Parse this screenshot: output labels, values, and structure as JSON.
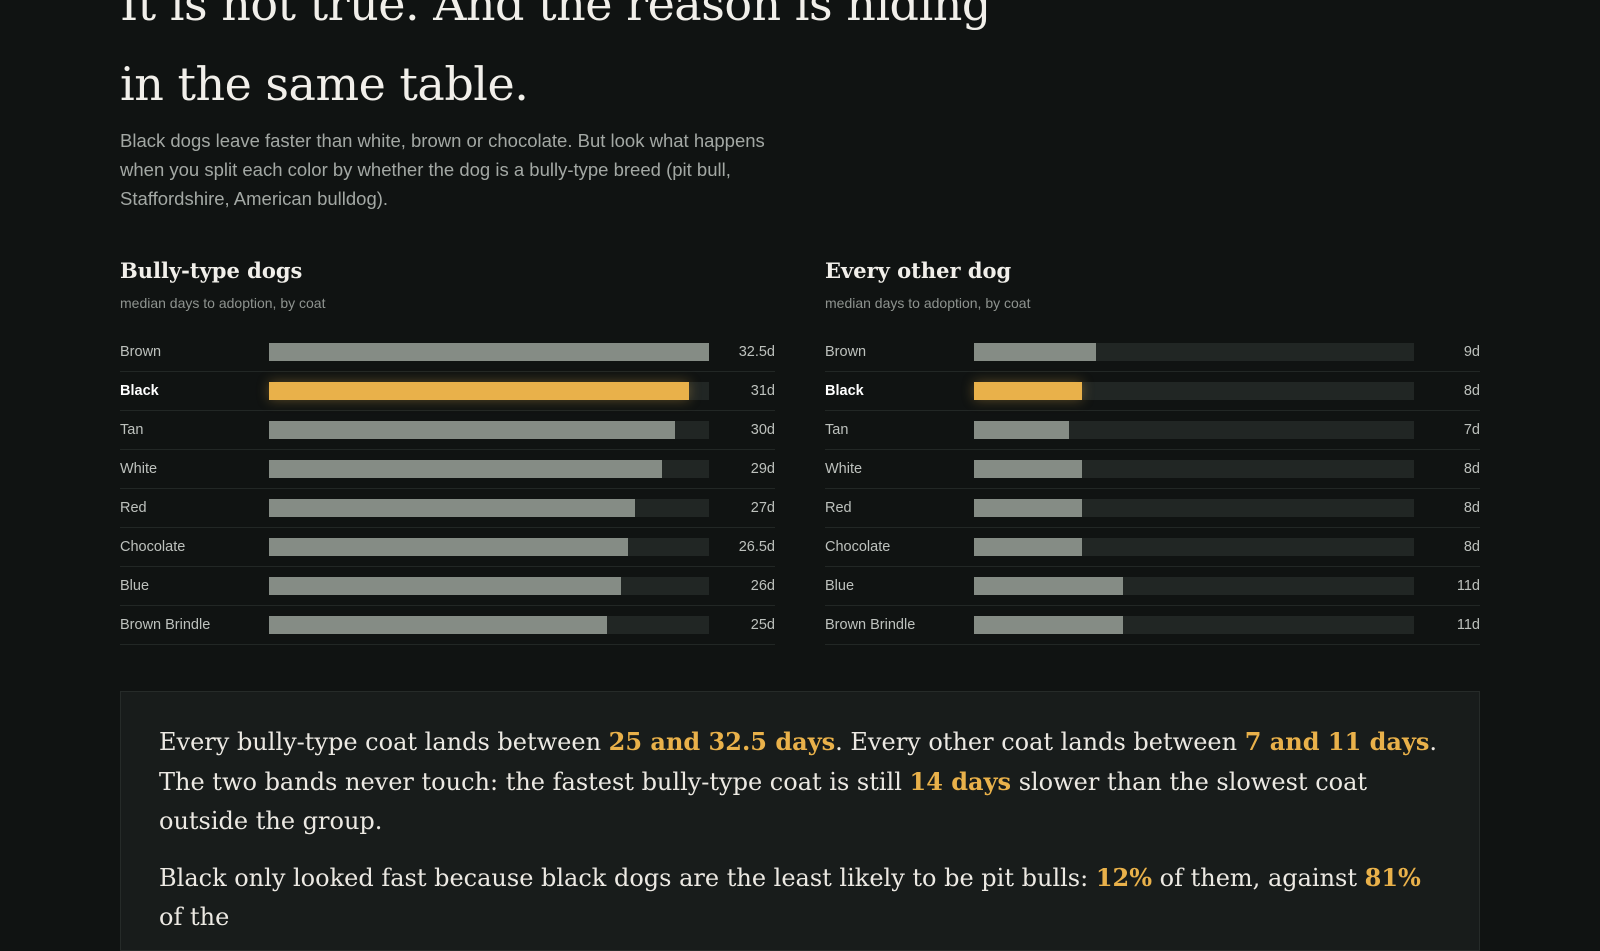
{
  "headline": "It is not true. And the reason is hiding in the same table.",
  "lede": "Black dogs leave faster than white, brown or chocolate. But look what happens when you split each color by whether the dog is a bully-type breed (pit bull, Staffordshire, American bulldog).",
  "colors": {
    "highlight": "#e9b14a",
    "bar": "#858c85",
    "track": "#212624",
    "background": "#101312"
  },
  "chart_data": [
    {
      "type": "bar",
      "orientation": "horizontal",
      "title": "Bully-type dogs",
      "subtitle": "median days to adoption, by coat",
      "xlim": [
        0,
        32.5
      ],
      "highlight": "Black",
      "categories": [
        "Brown",
        "Black",
        "Tan",
        "White",
        "Red",
        "Chocolate",
        "Blue",
        "Brown Brindle"
      ],
      "values": [
        32.5,
        31,
        30,
        29,
        27,
        26.5,
        26,
        25
      ],
      "value_labels": [
        "32.5d",
        "31d",
        "30d",
        "29d",
        "27d",
        "26.5d",
        "26d",
        "25d"
      ]
    },
    {
      "type": "bar",
      "orientation": "horizontal",
      "title": "Every other dog",
      "subtitle": "median days to adoption, by coat",
      "xlim": [
        0,
        32.5
      ],
      "highlight": "Black",
      "categories": [
        "Brown",
        "Black",
        "Tan",
        "White",
        "Red",
        "Chocolate",
        "Blue",
        "Brown Brindle"
      ],
      "values": [
        9,
        8,
        7,
        8,
        8,
        8,
        11,
        11
      ],
      "value_labels": [
        "9d",
        "8d",
        "7d",
        "8d",
        "8d",
        "8d",
        "11d",
        "11d"
      ]
    }
  ],
  "callout": {
    "p1": [
      {
        "t": "Every bully-type coat lands between "
      },
      {
        "t": "25 and 32.5 days",
        "em": true
      },
      {
        "t": ". Every other coat lands between "
      },
      {
        "t": "7 and 11 days",
        "em": true
      },
      {
        "t": ". The two bands never touch: the fastest bully-type coat is still "
      },
      {
        "t": "14 days",
        "em": true
      },
      {
        "t": " slower than the slowest coat outside the group."
      }
    ],
    "p2": [
      {
        "t": "Black only looked fast because black dogs are the least likely to be pit bulls: "
      },
      {
        "t": "12%",
        "em": true
      },
      {
        "t": " of them, against "
      },
      {
        "t": "81%",
        "em": true
      },
      {
        "t": " of the"
      }
    ]
  }
}
